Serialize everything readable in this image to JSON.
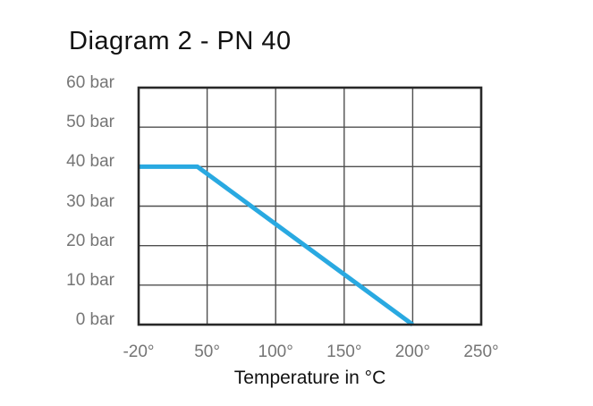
{
  "page": {
    "title": "Diagram 2 - PN 40"
  },
  "chart_data": {
    "type": "line",
    "title": "Diagram 2 - PN 40",
    "xlabel": "Temperature in °C",
    "ylabel": "",
    "x_ticks": [
      -20,
      50,
      100,
      150,
      200,
      250
    ],
    "x_tick_labels": [
      "-20°",
      "50°",
      "100°",
      "150°",
      "200°",
      "250°"
    ],
    "y_ticks": [
      60,
      50,
      40,
      30,
      20,
      10,
      0
    ],
    "y_tick_labels": [
      "60 bar",
      "50 bar",
      "40 bar",
      "30 bar",
      "20 bar",
      "10 bar",
      "0 bar"
    ],
    "xlim": [
      -20,
      250
    ],
    "ylim": [
      0,
      60
    ],
    "grid": true,
    "legend_position": "none",
    "series": [
      {
        "name": "PN 40",
        "color": "#29A9E1",
        "points": [
          {
            "x": -20,
            "y": 40
          },
          {
            "x": 40,
            "y": 40
          },
          {
            "x": 200,
            "y": 0
          }
        ]
      }
    ]
  },
  "colors": {
    "line_blue": "#29A9E1",
    "grid_line": "#4f4f4f",
    "plot_border": "#282828",
    "tick_label": "#757575",
    "title_text": "#111111",
    "background": "#ffffff"
  }
}
